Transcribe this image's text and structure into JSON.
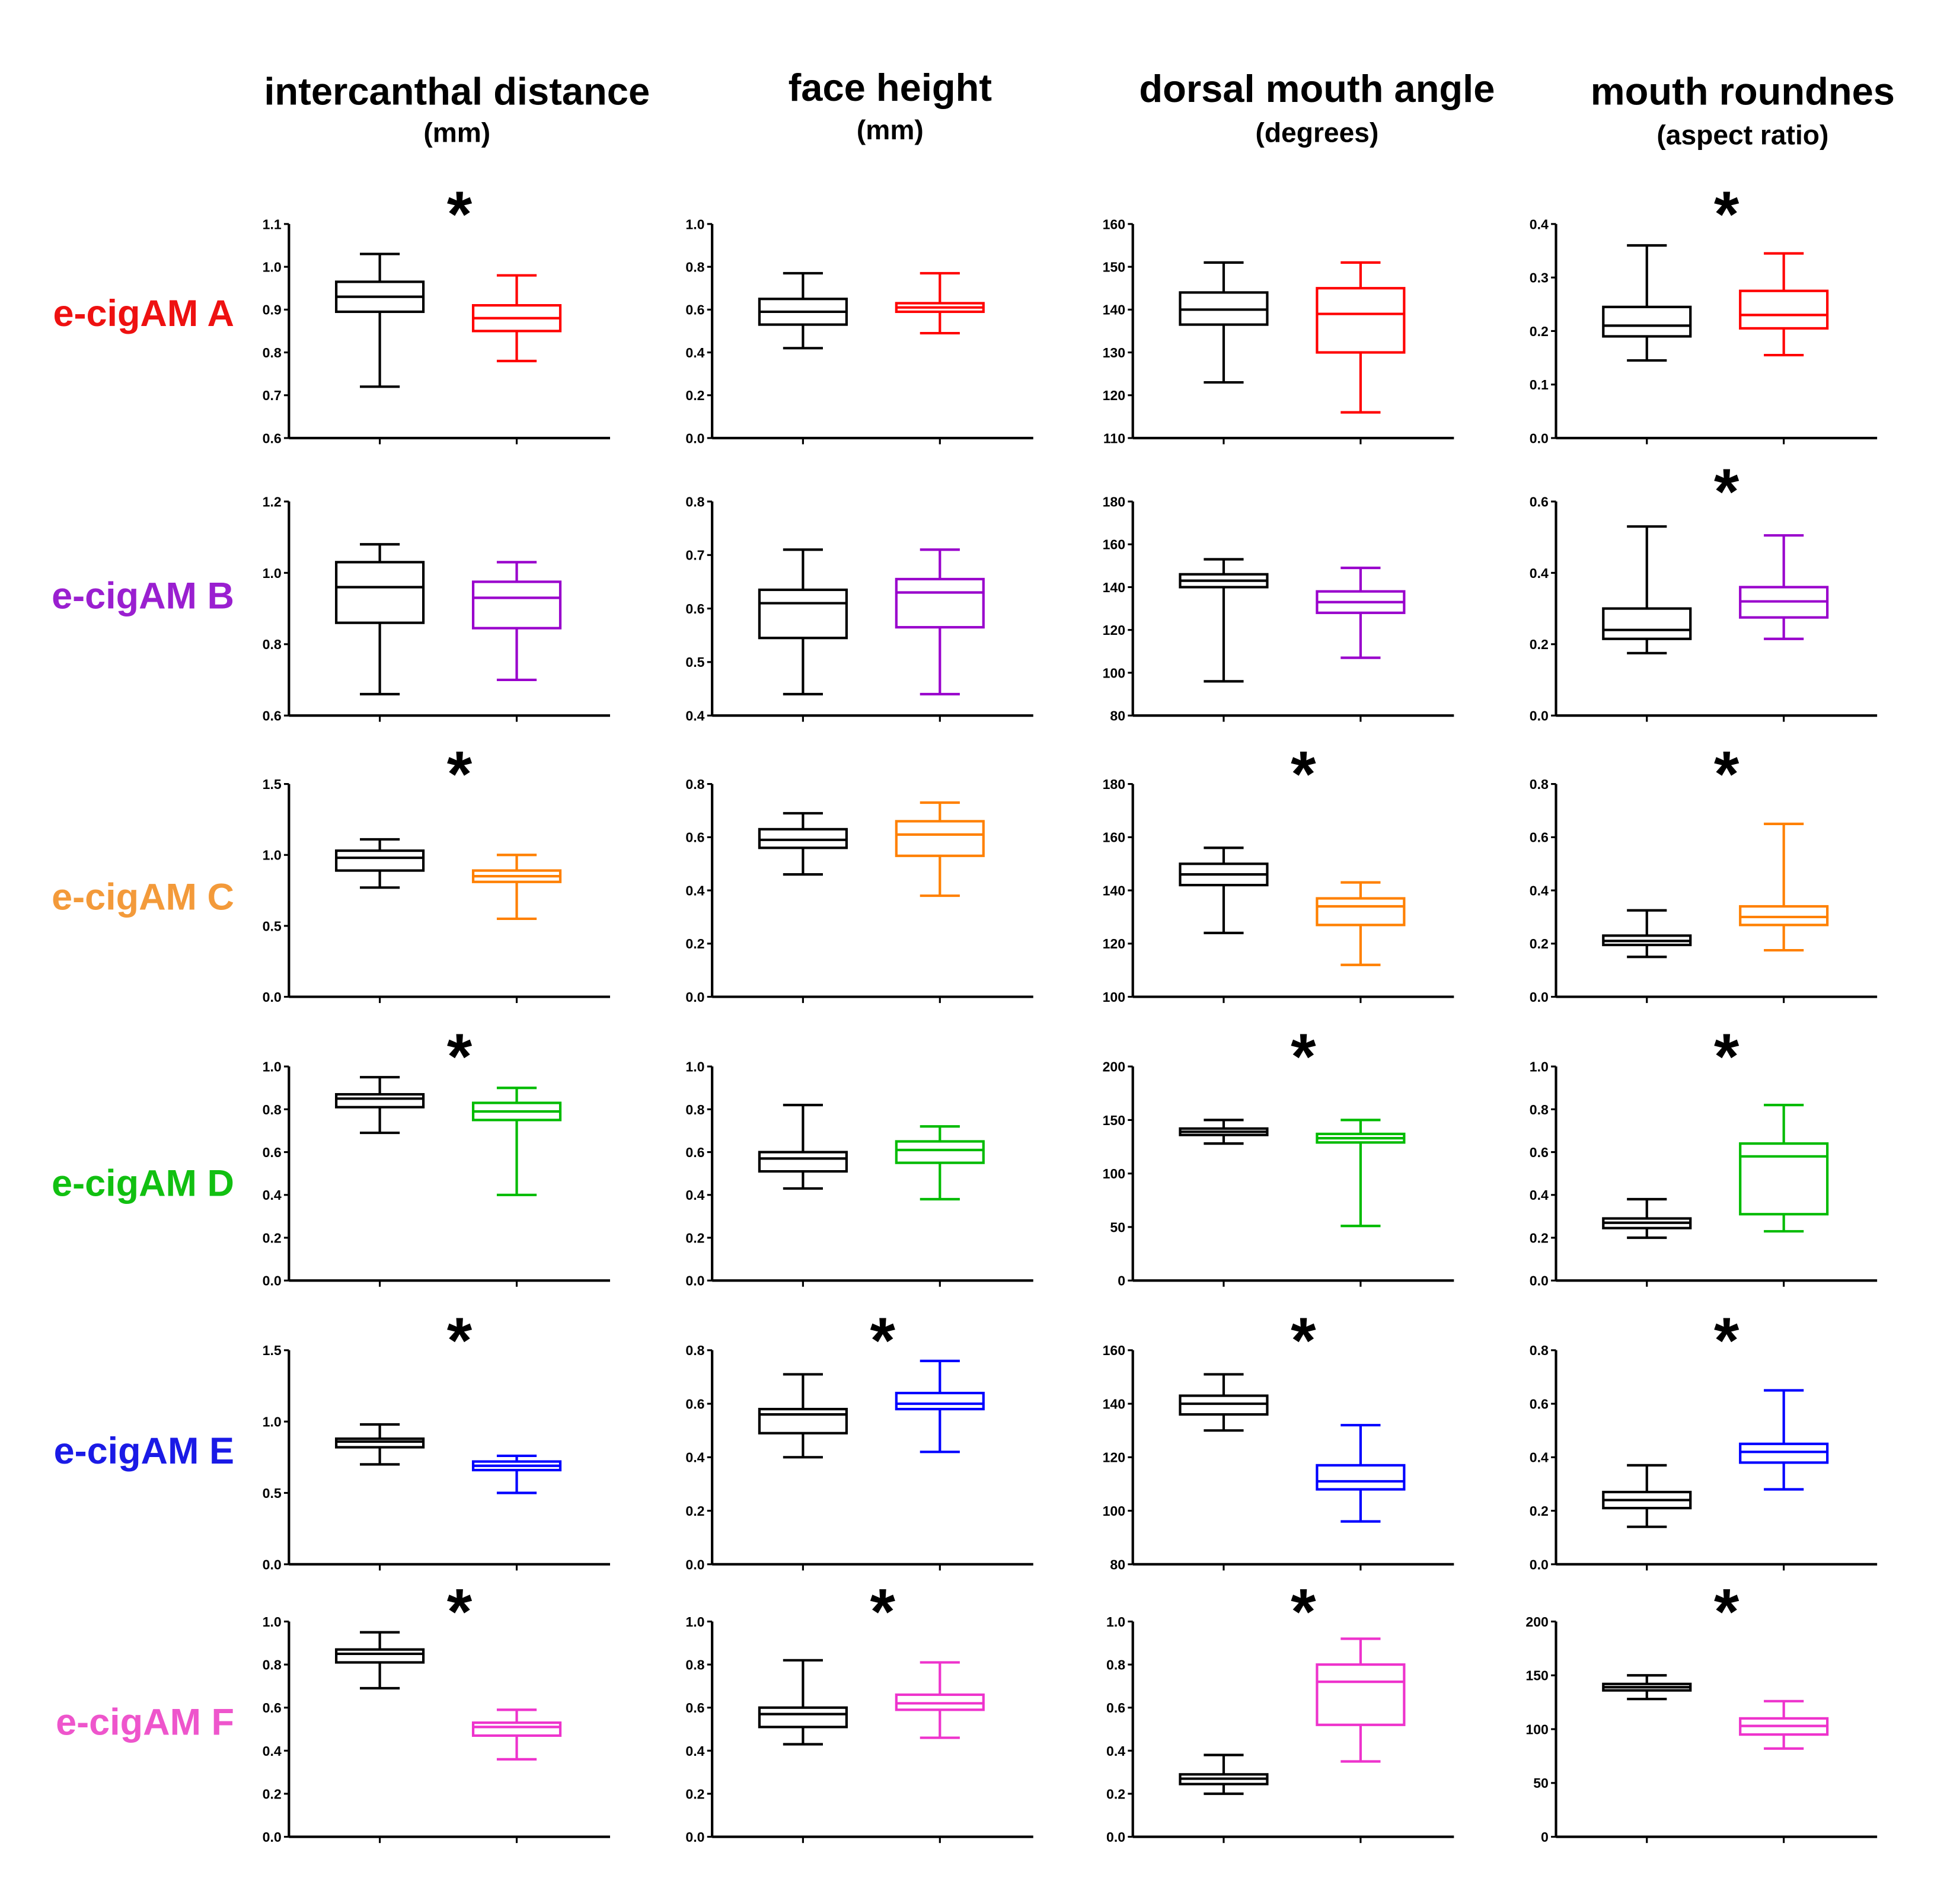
{
  "columns": [
    {
      "title": "intercanthal distance",
      "unit": "(mm)"
    },
    {
      "title": "face height",
      "unit": "(mm)"
    },
    {
      "title": "dorsal mouth angle",
      "unit": "(degrees)"
    },
    {
      "title": "mouth roundnes",
      "unit": "(aspect ratio)"
    }
  ],
  "rows": [
    {
      "label": "e-cigAM A",
      "color": "#ee1111"
    },
    {
      "label": "e-cigAM B",
      "color": "#9a1fd0"
    },
    {
      "label": "e-cigAM C",
      "color": "#f39a3a"
    },
    {
      "label": "e-cigAM D",
      "color": "#11c011"
    },
    {
      "label": "e-cigAM E",
      "color": "#1a1ae6"
    },
    {
      "label": "e-cigAM F",
      "color": "#ee55cc"
    }
  ],
  "box_colors": {
    "control": "#000000",
    "A": "#ff0000",
    "B": "#9900cc",
    "C": "#ff8000",
    "D": "#00bb00",
    "E": "#0000ff",
    "F": "#ee33cc"
  },
  "significance_mark": "*",
  "chart_data": [
    {
      "type": "box",
      "row": "e-cigAM A",
      "column": "intercanthal distance",
      "ylim": [
        0.6,
        1.1
      ],
      "ticks": [
        "0.6",
        "0.7",
        "0.8",
        "0.9",
        "1.0",
        "1.1"
      ],
      "significant": true,
      "control": [
        0.72,
        0.895,
        0.93,
        0.965,
        1.03
      ],
      "exposed": [
        0.78,
        0.85,
        0.88,
        0.91,
        0.98
      ]
    },
    {
      "type": "box",
      "row": "e-cigAM A",
      "column": "face height",
      "ylim": [
        0,
        1.0
      ],
      "ticks": [
        "0.0",
        "0.2",
        "0.4",
        "0.6",
        "0.8",
        "1.0"
      ],
      "significant": false,
      "control": [
        0.42,
        0.53,
        0.59,
        0.65,
        0.77
      ],
      "exposed": [
        0.49,
        0.59,
        0.61,
        0.63,
        0.77
      ]
    },
    {
      "type": "box",
      "row": "e-cigAM A",
      "column": "dorsal mouth angle",
      "ylim": [
        110,
        160
      ],
      "ticks": [
        "110",
        "120",
        "130",
        "140",
        "150",
        "160"
      ],
      "significant": false,
      "control": [
        123,
        136.5,
        140,
        144,
        151
      ],
      "exposed": [
        116,
        130,
        139,
        145,
        151
      ]
    },
    {
      "type": "box",
      "row": "e-cigAM A",
      "column": "mouth roundnes",
      "ylim": [
        0,
        0.4
      ],
      "ticks": [
        "0.0",
        "0.1",
        "0.2",
        "0.3",
        "0.4"
      ],
      "significant": true,
      "control": [
        0.145,
        0.19,
        0.21,
        0.245,
        0.36
      ],
      "exposed": [
        0.155,
        0.205,
        0.23,
        0.275,
        0.345
      ]
    },
    {
      "type": "box",
      "row": "e-cigAM B",
      "column": "intercanthal distance",
      "ylim": [
        0.6,
        1.2
      ],
      "ticks": [
        "0.6",
        "0.8",
        "1.0",
        "1.2"
      ],
      "significant": false,
      "control": [
        0.66,
        0.86,
        0.96,
        1.03,
        1.08
      ],
      "exposed": [
        0.7,
        0.845,
        0.93,
        0.975,
        1.03
      ]
    },
    {
      "type": "box",
      "row": "e-cigAM B",
      "column": "face height",
      "ylim": [
        0.4,
        0.8
      ],
      "ticks": [
        "0.4",
        "0.5",
        "0.6",
        "0.7",
        "0.8"
      ],
      "significant": false,
      "control": [
        0.44,
        0.545,
        0.61,
        0.635,
        0.71
      ],
      "exposed": [
        0.44,
        0.565,
        0.63,
        0.655,
        0.71
      ]
    },
    {
      "type": "box",
      "row": "e-cigAM B",
      "column": "dorsal mouth angle",
      "ylim": [
        80,
        180
      ],
      "ticks": [
        "80",
        "100",
        "120",
        "140",
        "160",
        "180"
      ],
      "significant": false,
      "control": [
        96,
        140,
        143,
        146,
        153
      ],
      "exposed": [
        107,
        128,
        133,
        138,
        149
      ]
    },
    {
      "type": "box",
      "row": "e-cigAM B",
      "column": "mouth roundnes",
      "ylim": [
        0,
        0.6
      ],
      "ticks": [
        "0.0",
        "0.2",
        "0.4",
        "0.6"
      ],
      "significant": true,
      "control": [
        0.175,
        0.215,
        0.24,
        0.3,
        0.53
      ],
      "exposed": [
        0.215,
        0.275,
        0.32,
        0.36,
        0.505
      ]
    },
    {
      "type": "box",
      "row": "e-cigAM C",
      "column": "intercanthal distance",
      "ylim": [
        0,
        1.5
      ],
      "ticks": [
        "0.0",
        "0.5",
        "1.0",
        "1.5"
      ],
      "significant": true,
      "control": [
        0.77,
        0.89,
        0.98,
        1.03,
        1.11
      ],
      "exposed": [
        0.55,
        0.81,
        0.85,
        0.89,
        1.0
      ]
    },
    {
      "type": "box",
      "row": "e-cigAM C",
      "column": "face height",
      "ylim": [
        0,
        0.8
      ],
      "ticks": [
        "0.0",
        "0.2",
        "0.4",
        "0.6",
        "0.8"
      ],
      "significant": false,
      "control": [
        0.46,
        0.56,
        0.59,
        0.63,
        0.69
      ],
      "exposed": [
        0.38,
        0.53,
        0.61,
        0.66,
        0.73
      ]
    },
    {
      "type": "box",
      "row": "e-cigAM C",
      "column": "dorsal mouth angle",
      "ylim": [
        100,
        180
      ],
      "ticks": [
        "100",
        "120",
        "140",
        "160",
        "180"
      ],
      "significant": true,
      "control": [
        124,
        142,
        146,
        150,
        156
      ],
      "exposed": [
        112,
        127,
        134,
        137,
        143
      ]
    },
    {
      "type": "box",
      "row": "e-cigAM C",
      "column": "mouth roundnes",
      "ylim": [
        0,
        0.8
      ],
      "ticks": [
        "0.0",
        "0.2",
        "0.4",
        "0.6",
        "0.8"
      ],
      "significant": true,
      "control": [
        0.15,
        0.195,
        0.21,
        0.23,
        0.325
      ],
      "exposed": [
        0.175,
        0.27,
        0.3,
        0.34,
        0.65
      ]
    },
    {
      "type": "box",
      "row": "e-cigAM D",
      "column": "intercanthal distance",
      "ylim": [
        0,
        1.0
      ],
      "ticks": [
        "0.0",
        "0.2",
        "0.4",
        "0.6",
        "0.8",
        "1.0"
      ],
      "significant": true,
      "control": [
        0.69,
        0.81,
        0.85,
        0.87,
        0.95
      ],
      "exposed": [
        0.4,
        0.75,
        0.79,
        0.83,
        0.9
      ]
    },
    {
      "type": "box",
      "row": "e-cigAM D",
      "column": "face height",
      "ylim": [
        0,
        1.0
      ],
      "ticks": [
        "0.0",
        "0.2",
        "0.4",
        "0.6",
        "0.8",
        "1.0"
      ],
      "significant": false,
      "control": [
        0.43,
        0.51,
        0.57,
        0.6,
        0.82
      ],
      "exposed": [
        0.38,
        0.55,
        0.61,
        0.65,
        0.72
      ]
    },
    {
      "type": "box",
      "row": "e-cigAM D",
      "column": "dorsal mouth angle",
      "ylim": [
        0,
        200
      ],
      "ticks": [
        "0",
        "50",
        "100",
        "150",
        "200"
      ],
      "significant": true,
      "control": [
        128,
        136,
        139,
        142,
        150
      ],
      "exposed": [
        51,
        129,
        133,
        137,
        150
      ]
    },
    {
      "type": "box",
      "row": "e-cigAM D",
      "column": "mouth roundnes",
      "ylim": [
        0,
        1.0
      ],
      "ticks": [
        "0.0",
        "0.2",
        "0.4",
        "0.6",
        "0.8",
        "1.0"
      ],
      "significant": true,
      "control": [
        0.2,
        0.245,
        0.27,
        0.29,
        0.38
      ],
      "exposed": [
        0.23,
        0.31,
        0.58,
        0.64,
        0.82
      ]
    },
    {
      "type": "box",
      "row": "e-cigAM E",
      "column": "intercanthal distance",
      "ylim": [
        0,
        1.5
      ],
      "ticks": [
        "0.0",
        "0.5",
        "1.0",
        "1.5"
      ],
      "significant": true,
      "control": [
        0.7,
        0.82,
        0.86,
        0.88,
        0.98
      ],
      "exposed": [
        0.5,
        0.66,
        0.69,
        0.72,
        0.76
      ]
    },
    {
      "type": "box",
      "row": "e-cigAM E",
      "column": "face height",
      "ylim": [
        0,
        0.8
      ],
      "ticks": [
        "0.0",
        "0.2",
        "0.4",
        "0.6",
        "0.8"
      ],
      "significant": true,
      "control": [
        0.4,
        0.49,
        0.56,
        0.58,
        0.71
      ],
      "exposed": [
        0.42,
        0.58,
        0.6,
        0.64,
        0.76
      ]
    },
    {
      "type": "box",
      "row": "e-cigAM E",
      "column": "dorsal mouth angle",
      "ylim": [
        80,
        160
      ],
      "ticks": [
        "80",
        "100",
        "120",
        "140",
        "160"
      ],
      "significant": true,
      "control": [
        130,
        136,
        140,
        143,
        151
      ],
      "exposed": [
        96,
        108,
        111,
        117,
        132
      ]
    },
    {
      "type": "box",
      "row": "e-cigAM E",
      "column": "mouth roundnes",
      "ylim": [
        0,
        0.8
      ],
      "ticks": [
        "0.0",
        "0.2",
        "0.4",
        "0.6",
        "0.8"
      ],
      "significant": true,
      "control": [
        0.14,
        0.21,
        0.24,
        0.27,
        0.37
      ],
      "exposed": [
        0.28,
        0.38,
        0.42,
        0.45,
        0.65
      ]
    },
    {
      "type": "box",
      "row": "e-cigAM F",
      "column": "intercanthal distance",
      "ylim": [
        0,
        1.0
      ],
      "ticks": [
        "0.0",
        "0.2",
        "0.4",
        "0.6",
        "0.8",
        "1.0"
      ],
      "significant": true,
      "control": [
        0.69,
        0.81,
        0.85,
        0.87,
        0.95
      ],
      "exposed": [
        0.36,
        0.47,
        0.51,
        0.53,
        0.59
      ]
    },
    {
      "type": "box",
      "row": "e-cigAM F",
      "column": "face height",
      "ylim": [
        0,
        1.0
      ],
      "ticks": [
        "0.0",
        "0.2",
        "0.4",
        "0.6",
        "0.8",
        "1.0"
      ],
      "significant": true,
      "control": [
        0.43,
        0.51,
        0.57,
        0.6,
        0.82
      ],
      "exposed": [
        0.46,
        0.59,
        0.62,
        0.66,
        0.81
      ]
    },
    {
      "type": "box",
      "row": "e-cigAM F",
      "column": "dorsal mouth angle",
      "ylim": [
        0,
        1.0
      ],
      "ticks": [
        "0.0",
        "0.2",
        "0.4",
        "0.6",
        "0.8",
        "1.0"
      ],
      "significant": true,
      "control": [
        0.2,
        0.245,
        0.27,
        0.29,
        0.38
      ],
      "exposed": [
        0.35,
        0.52,
        0.72,
        0.8,
        0.92
      ]
    },
    {
      "type": "box",
      "row": "e-cigAM F",
      "column": "mouth roundnes",
      "ylim": [
        0,
        200
      ],
      "ticks": [
        "0",
        "50",
        "100",
        "150",
        "200"
      ],
      "significant": true,
      "control": [
        128,
        136,
        139,
        142,
        150
      ],
      "exposed": [
        82,
        95,
        103,
        110,
        126
      ]
    }
  ]
}
